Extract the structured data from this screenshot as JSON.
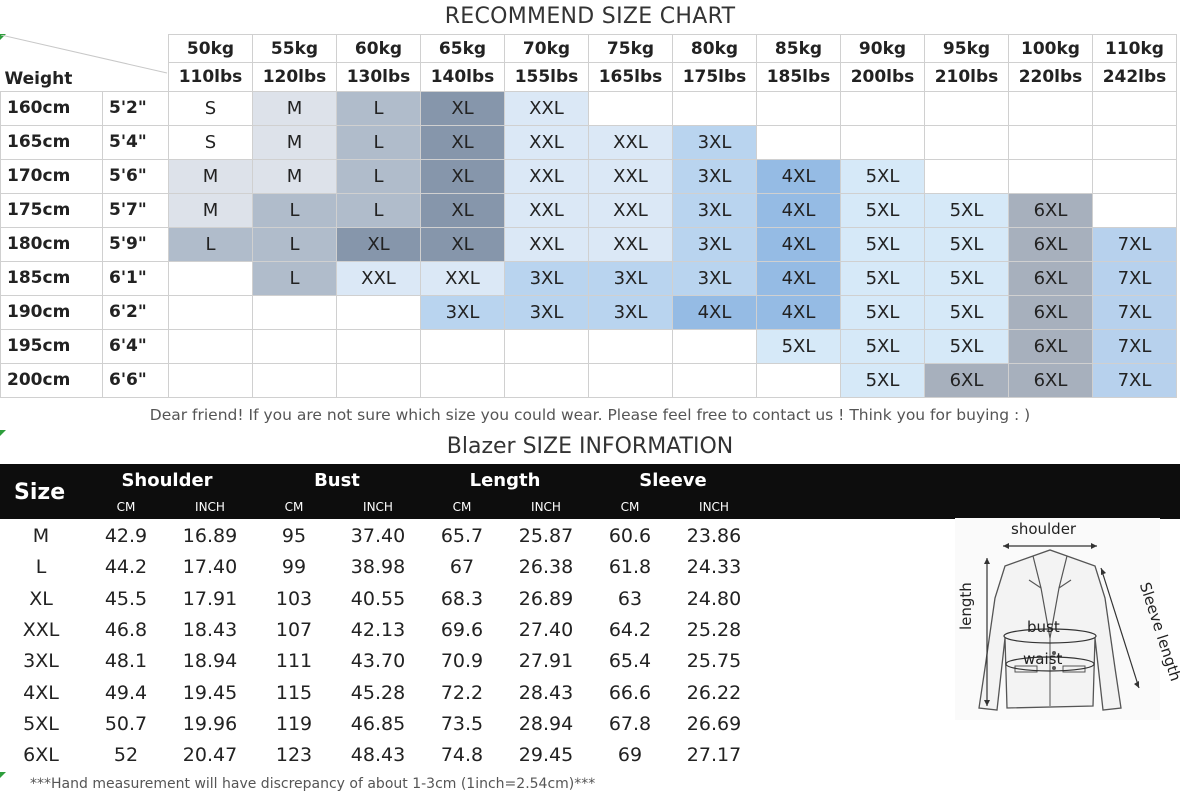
{
  "size_chart": {
    "title": "RECOMMEND SIZE CHART",
    "weight_label": "Weight",
    "weights_kg": [
      "50kg",
      "55kg",
      "60kg",
      "65kg",
      "70kg",
      "75kg",
      "80kg",
      "85kg",
      "90kg",
      "95kg",
      "100kg",
      "110kg"
    ],
    "weights_lbs": [
      "110lbs",
      "120lbs",
      "130lbs",
      "140lbs",
      "155lbs",
      "165lbs",
      "175lbs",
      "185lbs",
      "200lbs",
      "210lbs",
      "220lbs",
      "242lbs"
    ],
    "rows": [
      {
        "cm": "160cm",
        "inch": "5'2\"",
        "sizes": [
          "S",
          "M",
          "L",
          "XL",
          "XXL",
          "",
          "",
          "",
          "",
          "",
          "",
          ""
        ]
      },
      {
        "cm": "165cm",
        "inch": "5'4\"",
        "sizes": [
          "S",
          "M",
          "L",
          "XL",
          "XXL",
          "XXL",
          "3XL",
          "",
          "",
          "",
          "",
          ""
        ]
      },
      {
        "cm": "170cm",
        "inch": "5'6\"",
        "sizes": [
          "M",
          "M",
          "L",
          "XL",
          "XXL",
          "XXL",
          "3XL",
          "4XL",
          "5XL",
          "",
          "",
          ""
        ]
      },
      {
        "cm": "175cm",
        "inch": "5'7\"",
        "sizes": [
          "M",
          "L",
          "L",
          "XL",
          "XXL",
          "XXL",
          "3XL",
          "4XL",
          "5XL",
          "5XL",
          "6XL",
          ""
        ]
      },
      {
        "cm": "180cm",
        "inch": "5'9\"",
        "sizes": [
          "L",
          "L",
          "XL",
          "XL",
          "XXL",
          "XXL",
          "3XL",
          "4XL",
          "5XL",
          "5XL",
          "6XL",
          "7XL"
        ]
      },
      {
        "cm": "185cm",
        "inch": "6'1\"",
        "sizes": [
          "",
          "L",
          "XXL",
          "XXL",
          "3XL",
          "3XL",
          "3XL",
          "4XL",
          "5XL",
          "5XL",
          "6XL",
          "7XL"
        ]
      },
      {
        "cm": "190cm",
        "inch": "6'2\"",
        "sizes": [
          "",
          "",
          "",
          "3XL",
          "3XL",
          "3XL",
          "4XL",
          "4XL",
          "5XL",
          "5XL",
          "6XL",
          "7XL"
        ]
      },
      {
        "cm": "195cm",
        "inch": "6'4\"",
        "sizes": [
          "",
          "",
          "",
          "",
          "",
          "",
          "",
          "5XL",
          "5XL",
          "5XL",
          "6XL",
          "7XL"
        ]
      },
      {
        "cm": "200cm",
        "inch": "6'6\"",
        "sizes": [
          "",
          "",
          "",
          "",
          "",
          "",
          "",
          "",
          "5XL",
          "6XL",
          "6XL",
          "7XL"
        ]
      }
    ],
    "size_colors": {
      "S": "#ffffff",
      "M": "#dde2ea",
      "L": "#b0bccb",
      "XL": "#8696ab",
      "XXL": "#dbe8f6",
      "3XL": "#b9d4ef",
      "4XL": "#95bbe4",
      "5XL": "#d6e9f8",
      "6XL": "#a7b0bd",
      "7XL": "#b7d1ed"
    },
    "note": "Dear friend! If you are not sure which size you could wear. Please feel free to contact us ! Think you for buying  : )"
  },
  "blazer": {
    "title": "Blazer SIZE INFORMATION",
    "size_header": "Size",
    "groups": [
      "Shoulder",
      "Bust",
      "Length",
      "Sleeve"
    ],
    "units": [
      "CM",
      "INCH"
    ],
    "rows": [
      {
        "size": "M",
        "values": [
          "42.9",
          "16.89",
          "95",
          "37.40",
          "65.7",
          "25.87",
          "60.6",
          "23.86"
        ]
      },
      {
        "size": "L",
        "values": [
          "44.2",
          "17.40",
          "99",
          "38.98",
          "67",
          "26.38",
          "61.8",
          "24.33"
        ]
      },
      {
        "size": "XL",
        "values": [
          "45.5",
          "17.91",
          "103",
          "40.55",
          "68.3",
          "26.89",
          "63",
          "24.80"
        ]
      },
      {
        "size": "XXL",
        "values": [
          "46.8",
          "18.43",
          "107",
          "42.13",
          "69.6",
          "27.40",
          "64.2",
          "25.28"
        ]
      },
      {
        "size": "3XL",
        "values": [
          "48.1",
          "18.94",
          "111",
          "43.70",
          "70.9",
          "27.91",
          "65.4",
          "25.75"
        ]
      },
      {
        "size": "4XL",
        "values": [
          "49.4",
          "19.45",
          "115",
          "45.28",
          "72.2",
          "28.43",
          "66.6",
          "26.22"
        ]
      },
      {
        "size": "5XL",
        "values": [
          "50.7",
          "19.96",
          "119",
          "46.85",
          "73.5",
          "28.94",
          "67.8",
          "26.69"
        ]
      },
      {
        "size": "6XL",
        "values": [
          "52",
          "20.47",
          "123",
          "48.43",
          "74.8",
          "29.45",
          "69",
          "27.17"
        ]
      }
    ],
    "note": "***Hand measurement will have discrepancy of about 1-3cm (1inch=2.54cm)***"
  },
  "diagram": {
    "shoulder": "shoulder",
    "length": "length",
    "bust": "bust",
    "waist": "waist",
    "sleeve": "Sleeve length"
  }
}
